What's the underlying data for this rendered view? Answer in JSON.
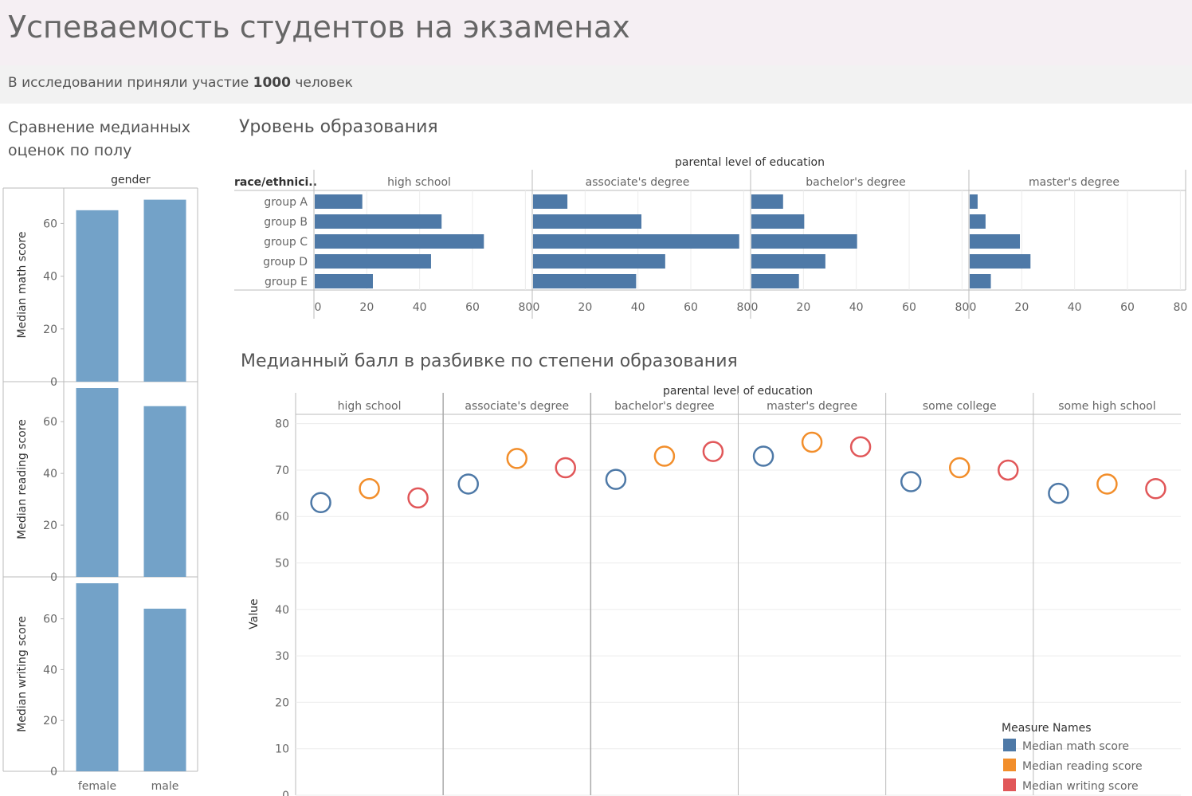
{
  "header": {
    "title": "Успеваемость студентов на экзаменах",
    "subtitle_prefix": "В исследовании приняли участие ",
    "subtitle_count": "1000",
    "subtitle_suffix": " человек"
  },
  "colors": {
    "bar": "#4e79a7",
    "gender_bar": "#73a2c8",
    "math": "#4e79a7",
    "reading": "#f28e2b",
    "writing": "#e15759",
    "grid": "#ececec",
    "axis": "#bbbbbb",
    "text": "#666666"
  },
  "chart_data": [
    {
      "id": "gender",
      "type": "bar",
      "title": "Сравнение медианных оценок по полу",
      "column_header": "gender",
      "categories": [
        "female",
        "male"
      ],
      "panels": [
        {
          "ylabel": "Median math score",
          "values": [
            65,
            69
          ],
          "ticks": [
            0,
            20,
            40,
            60
          ],
          "ylim": [
            0,
            71
          ]
        },
        {
          "ylabel": "Median reading score",
          "values": [
            73,
            66
          ],
          "ticks": [
            0,
            20,
            40,
            60
          ],
          "ylim": [
            0,
            73
          ]
        },
        {
          "ylabel": "Median writing score",
          "values": [
            74,
            64
          ],
          "ticks": [
            0,
            20,
            40,
            60
          ],
          "ylim": [
            0,
            74
          ]
        }
      ],
      "grid": false
    },
    {
      "id": "education",
      "type": "bar",
      "orientation": "horizontal",
      "title": "Уровень образования",
      "column_header": "parental level of education",
      "row_header": "race/ethnici..",
      "rows": [
        "group A",
        "group B",
        "group C",
        "group D",
        "group E"
      ],
      "columns": [
        "high school",
        "associate's degree",
        "bachelor's degree",
        "master's degree"
      ],
      "values": [
        [
          18,
          13,
          12,
          3
        ],
        [
          48,
          41,
          20,
          6
        ],
        [
          64,
          78,
          40,
          19
        ],
        [
          44,
          50,
          28,
          23
        ],
        [
          22,
          39,
          18,
          8
        ]
      ],
      "ticks": [
        0,
        20,
        40,
        60,
        80
      ],
      "xlim": [
        0,
        82
      ],
      "grid": true
    },
    {
      "id": "median_scores",
      "type": "scatter",
      "title": "Медианный балл в разбивке по степени образования",
      "column_header": "parental level of education",
      "categories": [
        "high school",
        "associate's degree",
        "bachelor's degree",
        "master's degree",
        "some college",
        "some high school"
      ],
      "ylabel": "Value",
      "ticks": [
        0,
        10,
        20,
        30,
        40,
        50,
        60,
        70,
        80
      ],
      "ylim": [
        0,
        82
      ],
      "legend_title": "Measure Names",
      "legend_position": "bottom-right",
      "series": [
        {
          "name": "Median math score",
          "values": [
            63,
            67,
            68,
            73,
            67.5,
            65
          ]
        },
        {
          "name": "Median reading score",
          "values": [
            66,
            72.5,
            73,
            76,
            70.5,
            67
          ]
        },
        {
          "name": "Median writing score",
          "values": [
            64,
            70.5,
            74,
            75,
            70,
            66
          ]
        }
      ],
      "grid": true
    }
  ]
}
